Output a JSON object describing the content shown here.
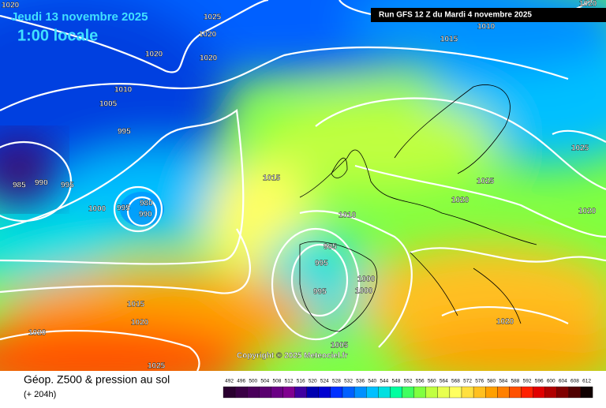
{
  "header": {
    "date": "Jeudi 13 novembre 2025",
    "time": "1:00 locale",
    "run": "Run GFS 12 Z du Mardi 4 novembre 2025"
  },
  "copyright": "Copyright © 2025 Meteociel.fr",
  "footer": {
    "title": "Géop. Z500 & pression au sol",
    "lead": "(+ 204h)"
  },
  "isobar_labels": [
    1020,
    1025,
    1020,
    1015,
    1010,
    1020,
    1020,
    1020,
    1010,
    1005,
    995,
    985,
    990,
    995,
    1000,
    995,
    980,
    990,
    1015,
    1025,
    1020,
    1025,
    1020,
    1010,
    995,
    995,
    1000,
    1000,
    995,
    1015,
    1020,
    1020,
    1005,
    1020,
    1025
  ],
  "legend": {
    "values": [
      492,
      496,
      500,
      504,
      508,
      512,
      516,
      520,
      524,
      528,
      532,
      536,
      540,
      544,
      548,
      552,
      556,
      560,
      564,
      568,
      572,
      576,
      580,
      584,
      588,
      592,
      596,
      600,
      604,
      608,
      612
    ],
    "colors": [
      "#2a0030",
      "#3a0045",
      "#4a005a",
      "#5a006f",
      "#6a0084",
      "#800090",
      "#4000a0",
      "#0000b0",
      "#0000d0",
      "#0030ff",
      "#0060ff",
      "#0090ff",
      "#00c0ff",
      "#00e0e0",
      "#00ffa0",
      "#40ff60",
      "#80ff40",
      "#c0ff40",
      "#e8ff50",
      "#ffff60",
      "#ffe040",
      "#ffc020",
      "#ffa000",
      "#ff8000",
      "#ff5000",
      "#ff2000",
      "#e00000",
      "#b00000",
      "#800000",
      "#500000",
      "#100000"
    ]
  }
}
